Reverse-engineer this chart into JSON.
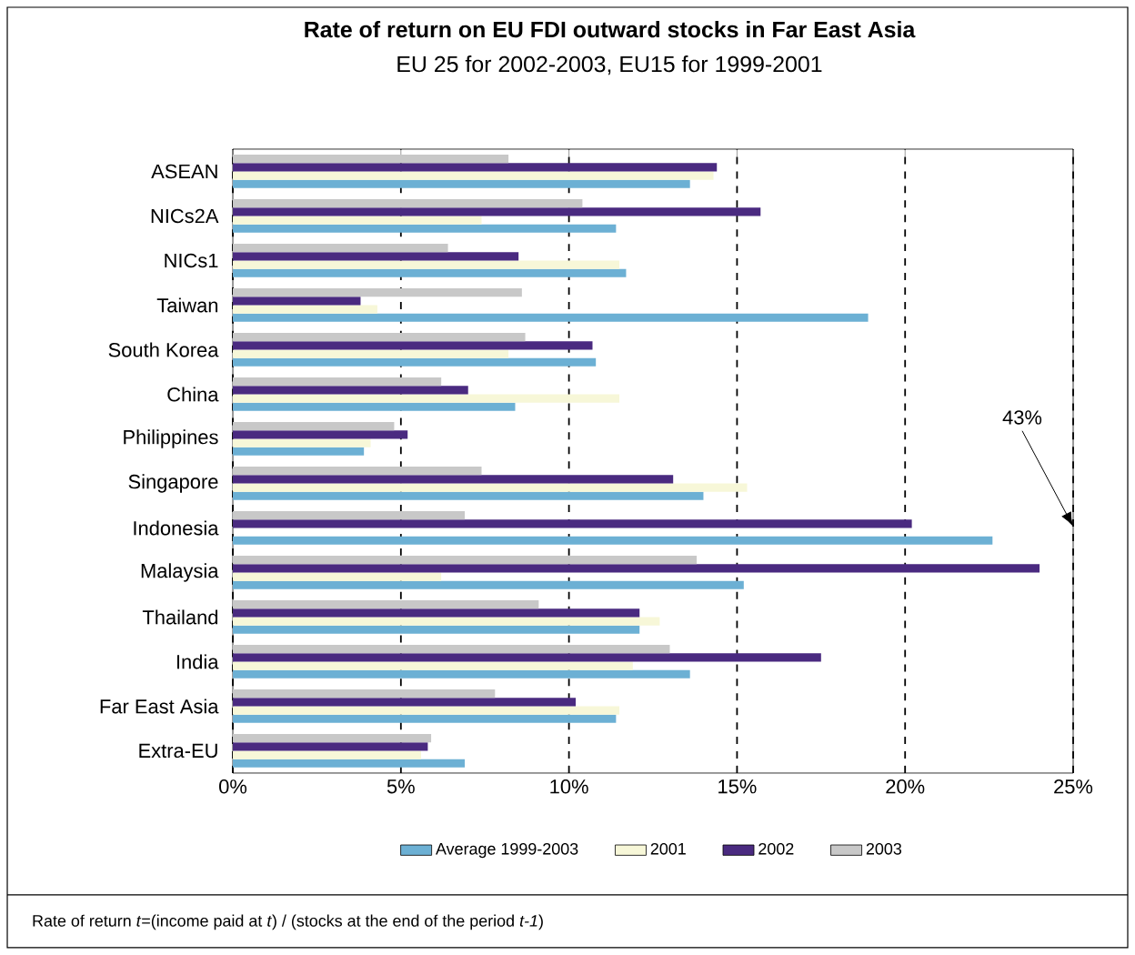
{
  "chart_data": {
    "type": "bar",
    "orientation": "horizontal",
    "title": "Rate of return on EU FDI outward stocks in Far East Asia",
    "subtitle": "EU 25 for 2002-2003, EU15 for 1999-2001",
    "categories": [
      "ASEAN",
      "NICs2A",
      "NICs1",
      "Taiwan",
      "South Korea",
      "China",
      "Philippines",
      "Singapore",
      "Indonesia",
      "Malaysia",
      "Thailand",
      "India",
      "Far East Asia",
      "Extra-EU"
    ],
    "series": [
      {
        "name": "Average 1999-2003",
        "color": "#6cb0d4",
        "values": [
          13.6,
          11.4,
          11.7,
          18.9,
          10.8,
          8.4,
          3.9,
          14.0,
          22.6,
          15.2,
          12.1,
          13.6,
          11.4,
          6.9
        ]
      },
      {
        "name": "2001",
        "color": "#f7f7d8",
        "values": [
          14.3,
          7.4,
          11.5,
          4.3,
          8.2,
          11.5,
          4.1,
          15.3,
          null,
          6.2,
          12.7,
          11.9,
          11.5,
          5.6
        ]
      },
      {
        "name": "2002",
        "color": "#4a2a80",
        "values": [
          14.4,
          15.7,
          8.5,
          3.8,
          10.7,
          7.0,
          5.2,
          13.1,
          20.2,
          24.0,
          12.1,
          17.5,
          10.2,
          5.8
        ]
      },
      {
        "name": "2003",
        "color": "#c8c8c8",
        "values": [
          8.2,
          10.4,
          6.4,
          8.6,
          8.7,
          6.2,
          4.8,
          7.4,
          6.9,
          13.8,
          9.1,
          13.0,
          7.8,
          5.9
        ]
      }
    ],
    "xlim": [
      0,
      25
    ],
    "xticks": [
      {
        "value": 0,
        "label": "0%"
      },
      {
        "value": 5,
        "label": "5%"
      },
      {
        "value": 10,
        "label": "10%"
      },
      {
        "value": 15,
        "label": "15%"
      },
      {
        "value": 20,
        "label": "20%"
      },
      {
        "value": 25,
        "label": "25%"
      }
    ],
    "grid": "x",
    "legend": "bottom",
    "annotations": [
      "43%",
      "Rate of return *t*=(income paid at *t*) / (stocks at the end of the period *t-1*)"
    ]
  }
}
